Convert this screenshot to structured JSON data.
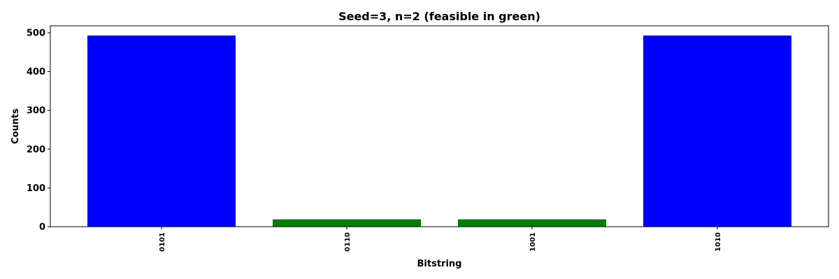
{
  "chart_data": {
    "type": "bar",
    "title": "Seed=3, n=2 (feasible in green)",
    "xlabel": "Bitstring",
    "ylabel": "Counts",
    "categories": [
      "0101",
      "0110",
      "1001",
      "1010"
    ],
    "values": [
      493,
      19,
      19,
      493
    ],
    "bar_colors": [
      "#0000ff",
      "#008000",
      "#008000",
      "#0000ff"
    ],
    "ylim": [
      0,
      518
    ],
    "yticks": [
      0,
      100,
      200,
      300,
      400,
      500
    ],
    "grid": false,
    "legend": "none"
  }
}
